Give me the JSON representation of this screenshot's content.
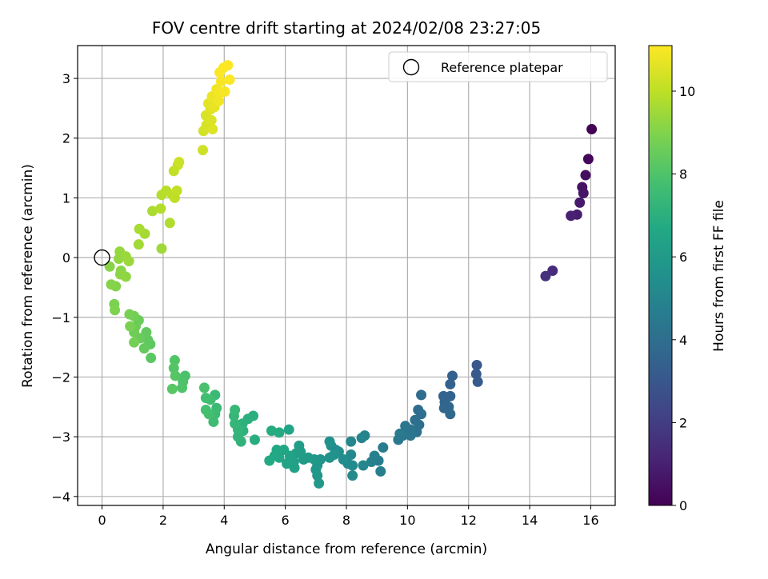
{
  "chart_data": {
    "type": "scatter",
    "title": "FOV centre drift starting at 2024/02/08 23:27:05",
    "xlabel": "Angular distance from reference (arcmin)",
    "ylabel": "Rotation from reference (arcmin)",
    "xlim": [
      -0.8,
      16.8
    ],
    "ylim": [
      -4.15,
      3.55
    ],
    "xticks": [
      0,
      2,
      4,
      6,
      8,
      10,
      12,
      14,
      16
    ],
    "yticks": [
      -4,
      -3,
      -2,
      -1,
      0,
      1,
      2,
      3
    ],
    "grid": true,
    "legend": {
      "placement": "upper right",
      "entries": [
        {
          "label": "Reference platepar",
          "marker": "open-circle"
        }
      ]
    },
    "reference_point": {
      "x": 0,
      "y": 0
    },
    "colorbar": {
      "label": "Hours from first FF file",
      "colormap": "viridis",
      "range": [
        0,
        11.1
      ],
      "ticks": [
        0,
        2,
        4,
        6,
        8,
        10
      ]
    },
    "points": [
      [
        16.03,
        2.15,
        0.0
      ],
      [
        15.92,
        1.65,
        0.2
      ],
      [
        15.83,
        1.38,
        0.4
      ],
      [
        15.72,
        1.18,
        0.55
      ],
      [
        15.76,
        1.08,
        0.65
      ],
      [
        15.64,
        0.92,
        0.75
      ],
      [
        15.55,
        0.72,
        0.9
      ],
      [
        15.35,
        0.7,
        1.0
      ],
      [
        14.75,
        -0.22,
        1.4
      ],
      [
        14.52,
        -0.31,
        1.55
      ],
      [
        12.27,
        -1.8,
        3.0
      ],
      [
        12.25,
        -1.95,
        3.1
      ],
      [
        12.3,
        -2.08,
        3.15
      ],
      [
        11.47,
        -1.98,
        3.4
      ],
      [
        11.4,
        -2.12,
        3.45
      ],
      [
        11.4,
        -2.32,
        3.5
      ],
      [
        11.18,
        -2.32,
        3.55
      ],
      [
        11.22,
        -2.42,
        3.6
      ],
      [
        11.2,
        -2.52,
        3.65
      ],
      [
        11.35,
        -2.5,
        3.7
      ],
      [
        11.4,
        -2.62,
        3.75
      ],
      [
        10.45,
        -2.3,
        3.9
      ],
      [
        10.35,
        -2.55,
        3.95
      ],
      [
        10.45,
        -2.62,
        4.0
      ],
      [
        10.25,
        -2.72,
        4.05
      ],
      [
        10.38,
        -2.8,
        4.1
      ],
      [
        10.3,
        -2.92,
        4.15
      ],
      [
        10.1,
        -2.88,
        4.2
      ],
      [
        9.93,
        -2.82,
        4.3
      ],
      [
        10.1,
        -2.98,
        4.35
      ],
      [
        9.85,
        -2.98,
        4.4
      ],
      [
        9.7,
        -3.05,
        4.45
      ],
      [
        9.75,
        -2.95,
        4.5
      ],
      [
        9.2,
        -3.18,
        4.6
      ],
      [
        9.05,
        -3.4,
        4.7
      ],
      [
        9.12,
        -3.58,
        4.75
      ],
      [
        8.92,
        -3.32,
        4.8
      ],
      [
        8.82,
        -3.42,
        4.85
      ],
      [
        8.6,
        -2.98,
        4.95
      ],
      [
        8.5,
        -3.02,
        5.0
      ],
      [
        8.55,
        -3.48,
        5.05
      ],
      [
        8.15,
        -3.08,
        5.1
      ],
      [
        8.15,
        -3.3,
        5.15
      ],
      [
        8.05,
        -3.45,
        5.2
      ],
      [
        8.2,
        -3.48,
        5.25
      ],
      [
        8.2,
        -3.65,
        5.3
      ],
      [
        7.9,
        -3.38,
        5.35
      ],
      [
        7.75,
        -3.25,
        5.4
      ],
      [
        7.65,
        -3.22,
        5.45
      ],
      [
        7.5,
        -3.15,
        5.5
      ],
      [
        7.45,
        -3.08,
        5.55
      ],
      [
        7.6,
        -3.3,
        5.6
      ],
      [
        7.45,
        -3.35,
        5.65
      ],
      [
        7.15,
        -3.38,
        5.7
      ],
      [
        7.05,
        -3.48,
        5.75
      ],
      [
        7.0,
        -3.55,
        5.8
      ],
      [
        7.05,
        -3.65,
        5.85
      ],
      [
        7.1,
        -3.78,
        5.9
      ],
      [
        6.95,
        -3.38,
        5.95
      ],
      [
        6.75,
        -3.35,
        6.0
      ],
      [
        6.6,
        -3.38,
        6.05
      ],
      [
        6.5,
        -3.25,
        6.1
      ],
      [
        6.45,
        -3.15,
        6.15
      ],
      [
        6.35,
        -3.28,
        6.2
      ],
      [
        6.28,
        -3.42,
        6.25
      ],
      [
        6.3,
        -3.52,
        6.3
      ],
      [
        6.15,
        -3.32,
        6.35
      ],
      [
        6.05,
        -3.45,
        6.4
      ],
      [
        6.12,
        -2.88,
        6.45
      ],
      [
        5.95,
        -3.22,
        6.5
      ],
      [
        5.8,
        -3.35,
        6.55
      ],
      [
        5.72,
        -3.22,
        6.6
      ],
      [
        5.65,
        -3.32,
        6.65
      ],
      [
        5.48,
        -3.4,
        6.7
      ],
      [
        5.8,
        -2.93,
        6.75
      ],
      [
        5.55,
        -2.9,
        6.8
      ],
      [
        5.0,
        -3.05,
        6.9
      ],
      [
        4.95,
        -2.65,
        6.95
      ],
      [
        4.78,
        -2.7,
        7.0
      ],
      [
        4.6,
        -2.78,
        7.05
      ],
      [
        4.62,
        -2.9,
        7.1
      ],
      [
        4.55,
        -3.08,
        7.15
      ],
      [
        4.45,
        -3.0,
        7.2
      ],
      [
        4.45,
        -2.88,
        7.25
      ],
      [
        4.35,
        -2.78,
        7.3
      ],
      [
        4.32,
        -2.65,
        7.35
      ],
      [
        4.35,
        -2.55,
        7.4
      ],
      [
        3.7,
        -2.3,
        7.45
      ],
      [
        3.75,
        -2.52,
        7.5
      ],
      [
        3.7,
        -2.62,
        7.55
      ],
      [
        3.65,
        -2.75,
        7.6
      ],
      [
        3.55,
        -2.38,
        7.65
      ],
      [
        3.4,
        -2.35,
        7.7
      ],
      [
        3.4,
        -2.55,
        7.75
      ],
      [
        3.5,
        -2.62,
        7.8
      ],
      [
        3.35,
        -2.18,
        7.85
      ],
      [
        2.72,
        -1.98,
        7.9
      ],
      [
        2.65,
        -2.08,
        7.95
      ],
      [
        2.62,
        -2.18,
        8.0
      ],
      [
        2.38,
        -1.72,
        8.05
      ],
      [
        2.35,
        -1.85,
        8.1
      ],
      [
        2.4,
        -1.98,
        8.15
      ],
      [
        2.3,
        -2.2,
        8.2
      ],
      [
        1.6,
        -1.68,
        8.25
      ],
      [
        1.58,
        -1.45,
        8.3
      ],
      [
        1.5,
        -1.38,
        8.35
      ],
      [
        1.45,
        -1.25,
        8.4
      ],
      [
        1.38,
        -1.52,
        8.45
      ],
      [
        1.25,
        -1.35,
        8.5
      ],
      [
        1.2,
        -1.05,
        8.55
      ],
      [
        1.1,
        -1.15,
        8.6
      ],
      [
        1.05,
        -1.25,
        8.65
      ],
      [
        1.05,
        -0.98,
        8.7
      ],
      [
        1.05,
        -1.42,
        8.75
      ],
      [
        0.9,
        -0.95,
        8.8
      ],
      [
        0.92,
        -1.15,
        8.85
      ],
      [
        0.4,
        -0.78,
        8.9
      ],
      [
        0.42,
        -0.88,
        8.95
      ],
      [
        0.45,
        -0.48,
        9.0
      ],
      [
        0.3,
        -0.45,
        9.05
      ],
      [
        0.25,
        -0.15,
        9.1
      ],
      [
        0.62,
        -0.22,
        9.15
      ],
      [
        0.6,
        -0.28,
        9.2
      ],
      [
        0.78,
        -0.32,
        9.25
      ],
      [
        0.55,
        -0.02,
        9.3
      ],
      [
        0.58,
        0.1,
        9.35
      ],
      [
        0.78,
        0.02,
        9.4
      ],
      [
        0.88,
        -0.06,
        9.45
      ],
      [
        1.95,
        0.15,
        9.5
      ],
      [
        1.2,
        0.22,
        9.55
      ],
      [
        1.4,
        0.4,
        9.6
      ],
      [
        1.22,
        0.48,
        9.65
      ],
      [
        1.65,
        0.78,
        9.7
      ],
      [
        2.22,
        0.58,
        9.75
      ],
      [
        1.92,
        0.82,
        9.8
      ],
      [
        1.95,
        1.05,
        9.85
      ],
      [
        2.1,
        1.12,
        9.9
      ],
      [
        2.3,
        1.05,
        9.95
      ],
      [
        2.38,
        1.0,
        10.0
      ],
      [
        2.45,
        1.12,
        10.05
      ],
      [
        2.35,
        1.45,
        10.1
      ],
      [
        2.48,
        1.55,
        10.15
      ],
      [
        2.52,
        1.6,
        10.2
      ],
      [
        3.3,
        1.8,
        10.3
      ],
      [
        3.32,
        2.12,
        10.35
      ],
      [
        3.42,
        2.22,
        10.4
      ],
      [
        3.4,
        2.38,
        10.45
      ],
      [
        3.58,
        2.3,
        10.5
      ],
      [
        3.62,
        2.15,
        10.55
      ],
      [
        3.55,
        2.48,
        10.6
      ],
      [
        3.48,
        2.58,
        10.65
      ],
      [
        3.68,
        2.52,
        10.7
      ],
      [
        3.7,
        2.65,
        10.75
      ],
      [
        3.6,
        2.7,
        10.8
      ],
      [
        3.75,
        2.82,
        10.85
      ],
      [
        3.82,
        2.62,
        10.9
      ],
      [
        3.85,
        2.75,
        10.95
      ],
      [
        4.02,
        2.78,
        11.0
      ],
      [
        3.9,
        2.95,
        11.02
      ],
      [
        4.18,
        2.98,
        11.04
      ],
      [
        3.85,
        3.1,
        11.06
      ],
      [
        3.98,
        3.18,
        11.08
      ],
      [
        4.12,
        3.22,
        11.1
      ]
    ]
  }
}
